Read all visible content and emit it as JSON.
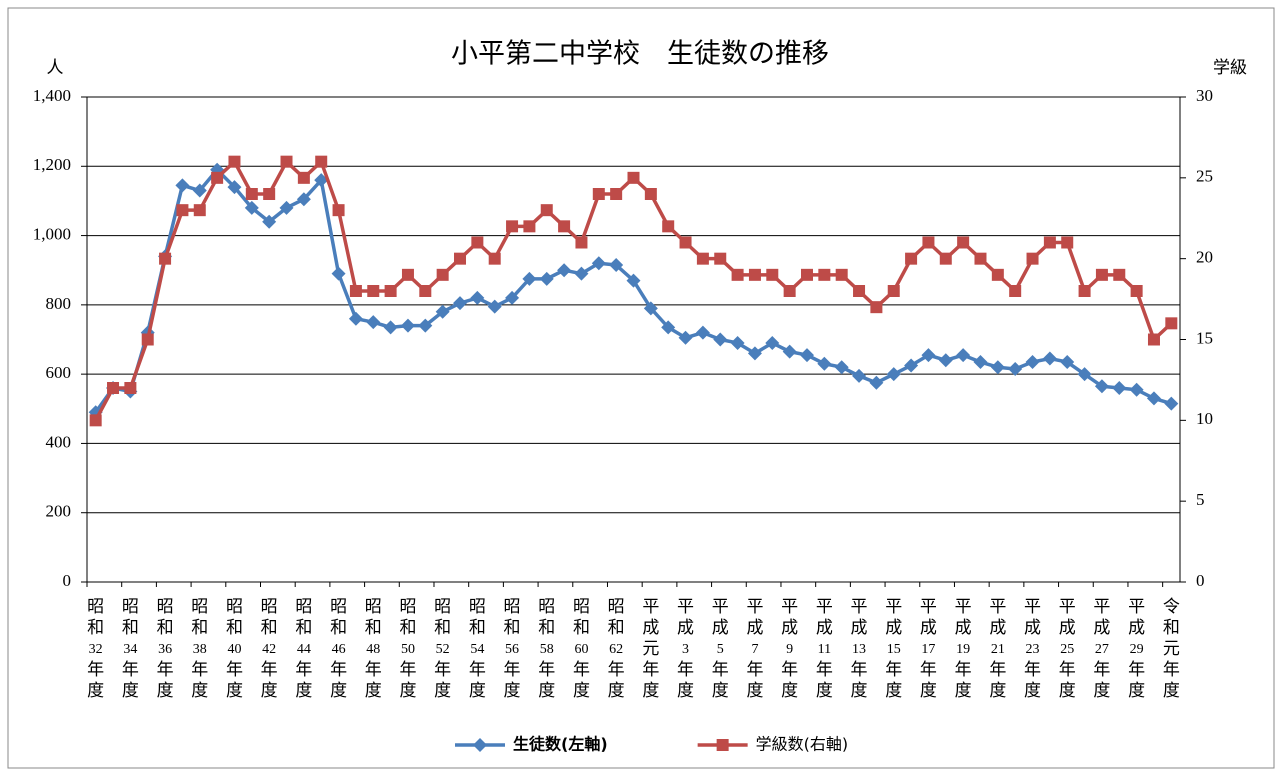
{
  "chart_data": {
    "type": "line",
    "title": "小平第二中学校　生徒数の推移",
    "y_label": "人",
    "y2_label": "学級",
    "categories": [
      "昭和32年度",
      null,
      "昭和34年度",
      null,
      "昭和36年度",
      null,
      "昭和38年度",
      null,
      "昭和40年度",
      null,
      "昭和42年度",
      null,
      "昭和44年度",
      null,
      "昭和46年度",
      null,
      "昭和48年度",
      null,
      "昭和50年度",
      null,
      "昭和52年度",
      null,
      "昭和54年度",
      null,
      "昭和56年度",
      null,
      "昭和58年度",
      null,
      "昭和60年度",
      null,
      "昭和62年度",
      null,
      "平成元年度",
      null,
      "平成3年度",
      null,
      "平成5年度",
      null,
      "平成7年度",
      null,
      "平成9年度",
      null,
      "平成11年度",
      null,
      "平成13年度",
      null,
      "平成15年度",
      null,
      "平成17年度",
      null,
      "平成19年度",
      null,
      "平成21年度",
      null,
      "平成23年度",
      null,
      "平成25年度",
      null,
      "平成27年度",
      null,
      "平成29年度",
      null,
      "令和元年度"
    ],
    "series": [
      {
        "name": "生徒数(左軸)",
        "color": "#4a7ebb",
        "marker": "diamond",
        "values": [
          490,
          560,
          550,
          720,
          940,
          1145,
          1130,
          1190,
          1140,
          1080,
          1040,
          1080,
          1105,
          1160,
          890,
          760,
          750,
          735,
          740,
          740,
          780,
          805,
          820,
          795,
          820,
          875,
          875,
          900,
          890,
          920,
          915,
          870,
          790,
          735,
          705,
          720,
          700,
          690,
          660,
          690,
          665,
          655,
          630,
          620,
          595,
          575,
          600,
          625,
          655,
          640,
          655,
          635,
          620,
          615,
          635,
          645,
          635,
          600,
          565,
          560,
          555,
          530,
          515
        ]
      },
      {
        "name": "学級数(右軸)",
        "color": "#be4b48",
        "marker": "square",
        "axis": "y2",
        "values": [
          10,
          12,
          12,
          15,
          20,
          23,
          23,
          25,
          26,
          24,
          24,
          26,
          25,
          26,
          23,
          18,
          18,
          18,
          19,
          18,
          19,
          20,
          21,
          20,
          22,
          22,
          23,
          22,
          21,
          24,
          24,
          25,
          24,
          22,
          21,
          20,
          20,
          19,
          19,
          19,
          18,
          19,
          19,
          19,
          18,
          17,
          18,
          20,
          21,
          20,
          21,
          20,
          19,
          18,
          20,
          21,
          21,
          18,
          19,
          19,
          18,
          15,
          16
        ]
      }
    ],
    "ylim": [
      0,
      1400
    ],
    "yticks": [
      0,
      200,
      400,
      600,
      800,
      {
        "value": 1000,
        "label": "1,000"
      },
      {
        "value": 1200,
        "label": "1,200"
      },
      {
        "value": 1400,
        "label": "1,400"
      }
    ],
    "y2lim": [
      0,
      30
    ],
    "y2ticks": [
      0,
      5,
      10,
      15,
      20,
      25,
      30
    ],
    "grid": true,
    "legend": "bottom"
  }
}
